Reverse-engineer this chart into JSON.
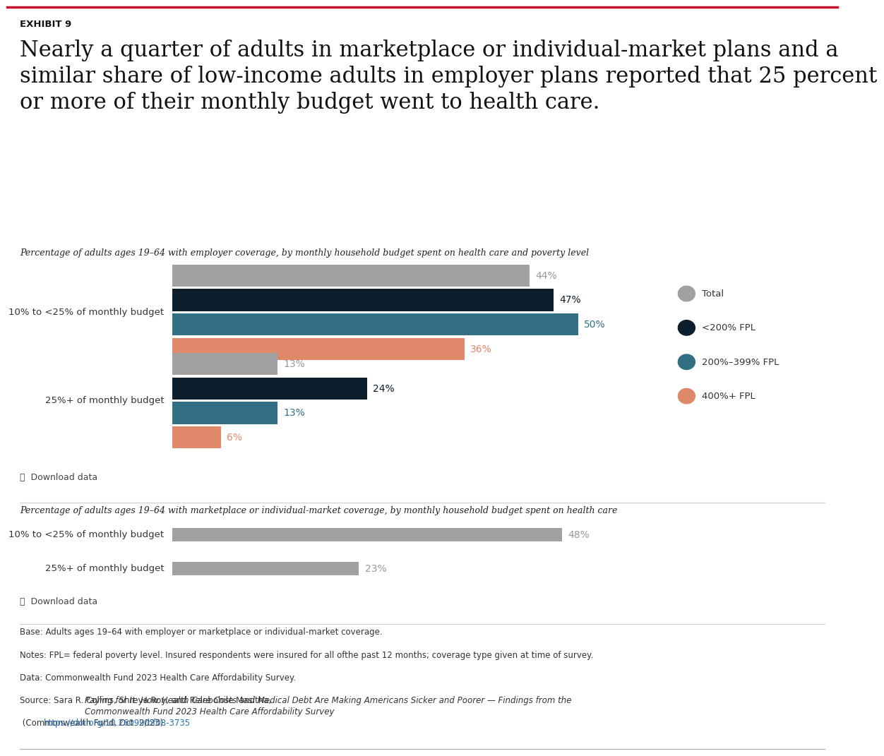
{
  "exhibit_label": "EXHIBIT 9",
  "title_line1": "Nearly a quarter of adults in marketplace or individual-market plans and a",
  "title_line2": "similar share of low-income adults in employer plans reported that 25 percent",
  "title_line3": "or more of their monthly budget went to health care.",
  "chart1_subtitle": "Percentage of adults ages 19–64 with employer coverage, by monthly household budget spent on health care and poverty level",
  "chart2_subtitle": "Percentage of adults ages 19–64 with marketplace or individual-market coverage, by monthly household budget spent on health care",
  "chart1_categories": [
    "10% to <25% of monthly budget",
    "25%+ of monthly budget"
  ],
  "chart1_series": [
    {
      "label": "Total",
      "color": "#a0a0a0",
      "values": [
        44,
        13
      ]
    },
    {
      "label": "<200% FPL",
      "color": "#0d1f2d",
      "values": [
        47,
        24
      ]
    },
    {
      "label": "200%–399% FPL",
      "color": "#336f82",
      "values": [
        50,
        13
      ]
    },
    {
      "label": "400%+ FPL",
      "color": "#e0896a",
      "values": [
        36,
        6
      ]
    }
  ],
  "chart2_categories": [
    "10% to <25% of monthly budget",
    "25%+ of monthly budget"
  ],
  "chart2_series": [
    {
      "label": "Total",
      "color": "#a0a0a0",
      "values": [
        48,
        23
      ]
    }
  ],
  "download_text": "⤓  Download data",
  "footnote_base": "Base: Adults ages 19–64 with employer or marketplace or individual-market coverage.",
  "footnote_notes": "Notes: FPL= federal poverty level. Insured respondents were insured for all ofthe past 12 months; coverage type given at time of survey.",
  "footnote_data": "Data: Commonwealth Fund 2023 Health Care Affordability Survey.",
  "footnote_source_plain": "Source: Sara R. Collins, Shreya Roy, and Relebohile Masitha, ",
  "footnote_source_italic": "Paying for It: How Health Care Costs and Medical Debt Are Making Americans Sicker and Poorer — Findings from the\nCommonwealth Fund 2023 Health Care Affordability Survey",
  "footnote_source_end": " (Commonwealth Fund, Oct. 2023). ",
  "footnote_source_link": "https://doi.org/10.26099/bf08-3735",
  "top_line_color": "#c8102e",
  "bottom_line_color": "#aaaaaa",
  "label_color": "#888888",
  "background_color": "#ffffff"
}
